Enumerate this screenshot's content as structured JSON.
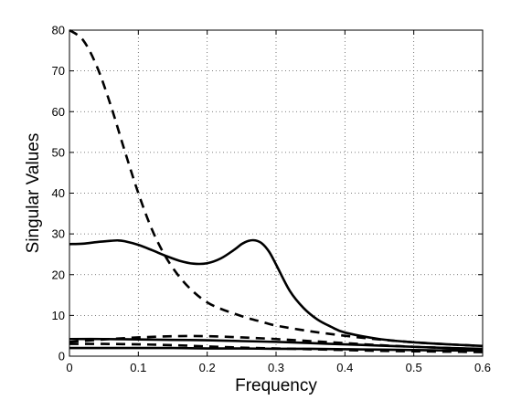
{
  "chart_data": {
    "type": "line",
    "title": "",
    "xlabel": "Frequency",
    "ylabel": "Singular Values",
    "xlim": [
      0,
      0.6
    ],
    "ylim": [
      0,
      80
    ],
    "xticks": [
      0,
      0.1,
      0.2,
      0.3,
      0.4,
      0.5,
      0.6
    ],
    "yticks": [
      0,
      10,
      20,
      30,
      40,
      50,
      60,
      70,
      80
    ],
    "xtick_labels": [
      "0",
      "0.1",
      "0.2",
      "0.3",
      "0.4",
      "0.5",
      "0.6"
    ],
    "ytick_labels": [
      "0",
      "10",
      "20",
      "30",
      "40",
      "50",
      "60",
      "70",
      "80"
    ],
    "grid": true,
    "grid_style": "dotted",
    "legend": "none",
    "line_color": "#000000",
    "series": [
      {
        "style": "dashed",
        "x": [
          0,
          0.02,
          0.04,
          0.06,
          0.08,
          0.1,
          0.12,
          0.14,
          0.16,
          0.18,
          0.2,
          0.22,
          0.24,
          0.26,
          0.28,
          0.3,
          0.35,
          0.4,
          0.45,
          0.5,
          0.55,
          0.6
        ],
        "y": [
          80,
          77.5,
          71,
          61.5,
          50.5,
          40,
          31,
          24.3,
          19.4,
          15.8,
          13.2,
          11.6,
          10.4,
          9.3,
          8.4,
          7.5,
          6.1,
          5.0,
          4.1,
          3.4,
          2.9,
          2.5
        ]
      },
      {
        "style": "solid",
        "x": [
          0,
          0.02,
          0.04,
          0.06,
          0.07,
          0.08,
          0.1,
          0.12,
          0.14,
          0.16,
          0.18,
          0.2,
          0.22,
          0.24,
          0.25,
          0.26,
          0.27,
          0.28,
          0.29,
          0.3,
          0.32,
          0.34,
          0.36,
          0.38,
          0.4,
          0.45,
          0.5,
          0.55,
          0.6
        ],
        "y": [
          27.5,
          27.6,
          28.0,
          28.3,
          28.4,
          28.2,
          27.3,
          26.0,
          24.6,
          23.4,
          22.7,
          22.8,
          24.0,
          26.2,
          27.5,
          28.3,
          28.4,
          27.6,
          25.6,
          22.5,
          16.0,
          11.8,
          9.0,
          7.2,
          5.8,
          4.2,
          3.4,
          2.9,
          2.5
        ]
      },
      {
        "style": "dashed",
        "x": [
          0,
          0.05,
          0.1,
          0.15,
          0.2,
          0.25,
          0.3,
          0.35,
          0.4,
          0.45,
          0.5,
          0.55,
          0.6
        ],
        "y": [
          3.5,
          4.1,
          4.6,
          4.9,
          4.9,
          4.6,
          4.2,
          3.7,
          3.2,
          2.7,
          2.3,
          2.0,
          1.7
        ]
      },
      {
        "style": "solid",
        "x": [
          0,
          0.05,
          0.1,
          0.15,
          0.2,
          0.25,
          0.3,
          0.35,
          0.4,
          0.45,
          0.5,
          0.55,
          0.6
        ],
        "y": [
          4.2,
          4.2,
          4.1,
          4.0,
          3.9,
          3.7,
          3.5,
          3.2,
          2.9,
          2.6,
          2.3,
          2.0,
          1.8
        ]
      },
      {
        "style": "dashed",
        "x": [
          0,
          0.05,
          0.1,
          0.15,
          0.2,
          0.25,
          0.3,
          0.35,
          0.4,
          0.45,
          0.5,
          0.55,
          0.6
        ],
        "y": [
          3.0,
          3.0,
          2.9,
          2.7,
          2.4,
          2.1,
          1.9,
          1.7,
          1.5,
          1.3,
          1.2,
          1.1,
          1.0
        ]
      },
      {
        "style": "solid",
        "x": [
          0,
          0.05,
          0.1,
          0.15,
          0.2,
          0.25,
          0.3,
          0.35,
          0.4,
          0.45,
          0.5,
          0.55,
          0.6
        ],
        "y": [
          2.0,
          2.0,
          2.0,
          2.0,
          1.9,
          1.9,
          1.8,
          1.8,
          1.7,
          1.6,
          1.5,
          1.4,
          1.4
        ]
      }
    ]
  }
}
